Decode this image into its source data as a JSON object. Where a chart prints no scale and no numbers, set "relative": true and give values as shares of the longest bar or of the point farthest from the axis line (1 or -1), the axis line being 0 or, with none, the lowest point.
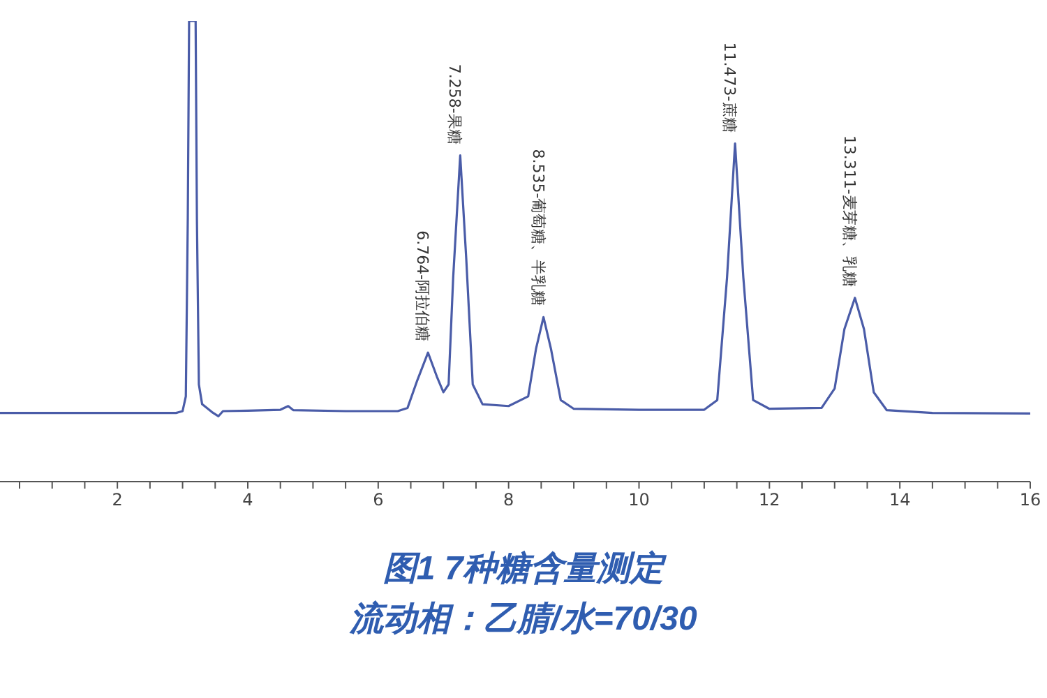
{
  "chart_data": {
    "type": "line",
    "title": "图1 7种糖含量测定",
    "subtitle": "流动相：乙腈/水=70/30",
    "relative": true,
    "tick_labels": "x",
    "marker": "none",
    "color": "#4a5ca8",
    "x": [
      0.2,
      1.0,
      2.0,
      2.9,
      3.0,
      3.05,
      3.08,
      3.1,
      3.2,
      3.22,
      3.25,
      3.3,
      3.45,
      3.55,
      3.62,
      4.0,
      4.5,
      4.62,
      4.7,
      5.5,
      6.3,
      6.45,
      6.6,
      6.764,
      6.9,
      7.0,
      7.08,
      7.15,
      7.258,
      7.35,
      7.45,
      7.6,
      8.0,
      8.3,
      8.42,
      8.535,
      8.65,
      8.8,
      9.0,
      10.0,
      11.0,
      11.2,
      11.35,
      11.473,
      11.6,
      11.75,
      12.0,
      12.8,
      13.0,
      13.15,
      13.311,
      13.45,
      13.6,
      13.8,
      14.5,
      16.0
    ],
    "values": [
      0.149,
      0.149,
      0.149,
      0.149,
      0.153,
      0.185,
      0.571,
      1,
      1,
      0.571,
      0.211,
      0.168,
      0.151,
      0.142,
      0.153,
      0.154,
      0.156,
      0.164,
      0.155,
      0.153,
      0.153,
      0.16,
      0.22,
      0.28,
      0.228,
      0.194,
      0.211,
      0.443,
      0.708,
      0.485,
      0.211,
      0.168,
      0.164,
      0.185,
      0.288,
      0.357,
      0.288,
      0.177,
      0.158,
      0.156,
      0.156,
      0.177,
      0.443,
      0.734,
      0.443,
      0.177,
      0.158,
      0.16,
      0.202,
      0.331,
      0.399,
      0.331,
      0.194,
      0.155,
      0.149,
      0.148
    ],
    "xlim": [
      0.2,
      16
    ],
    "xticks": [
      {
        "value": 0.5,
        "label": null
      },
      {
        "value": 1,
        "label": null
      },
      {
        "value": 1.5,
        "label": null
      },
      2,
      {
        "value": 2.5,
        "label": null
      },
      {
        "value": 3,
        "label": null
      },
      {
        "value": 3.5,
        "label": null
      },
      4,
      {
        "value": 4.5,
        "label": null
      },
      {
        "value": 5,
        "label": null
      },
      {
        "value": 5.5,
        "label": null
      },
      6,
      {
        "value": 6.5,
        "label": null
      },
      {
        "value": 7,
        "label": null
      },
      {
        "value": 7.5,
        "label": null
      },
      8,
      {
        "value": 8.5,
        "label": null
      },
      {
        "value": 9,
        "label": null
      },
      {
        "value": 9.5,
        "label": null
      },
      10,
      {
        "value": 10.5,
        "label": null
      },
      {
        "value": 11,
        "label": null
      },
      {
        "value": 11.5,
        "label": null
      },
      12,
      {
        "value": 12.5,
        "label": null
      },
      {
        "value": 13,
        "label": null
      },
      {
        "value": 13.5,
        "label": null
      },
      14,
      {
        "value": 14.5,
        "label": null
      },
      {
        "value": 15,
        "label": null
      },
      {
        "value": 15.5,
        "label": null
      },
      16
    ],
    "annotations": [
      {
        "text": "6.764-阿拉伯糖",
        "x": 6.764,
        "y": 0.28
      },
      {
        "text": "7.258-果糖",
        "x": 7.258,
        "y": 0.708
      },
      {
        "text": "8.535-葡萄糖、半乳糖",
        "x": 8.535,
        "y": 0.357
      },
      {
        "text": "11.473-蔗糖",
        "x": 11.473,
        "y": 0.734
      },
      {
        "text": "13.311-麦芽糖、乳糖",
        "x": 13.311,
        "y": 0.399
      }
    ]
  }
}
